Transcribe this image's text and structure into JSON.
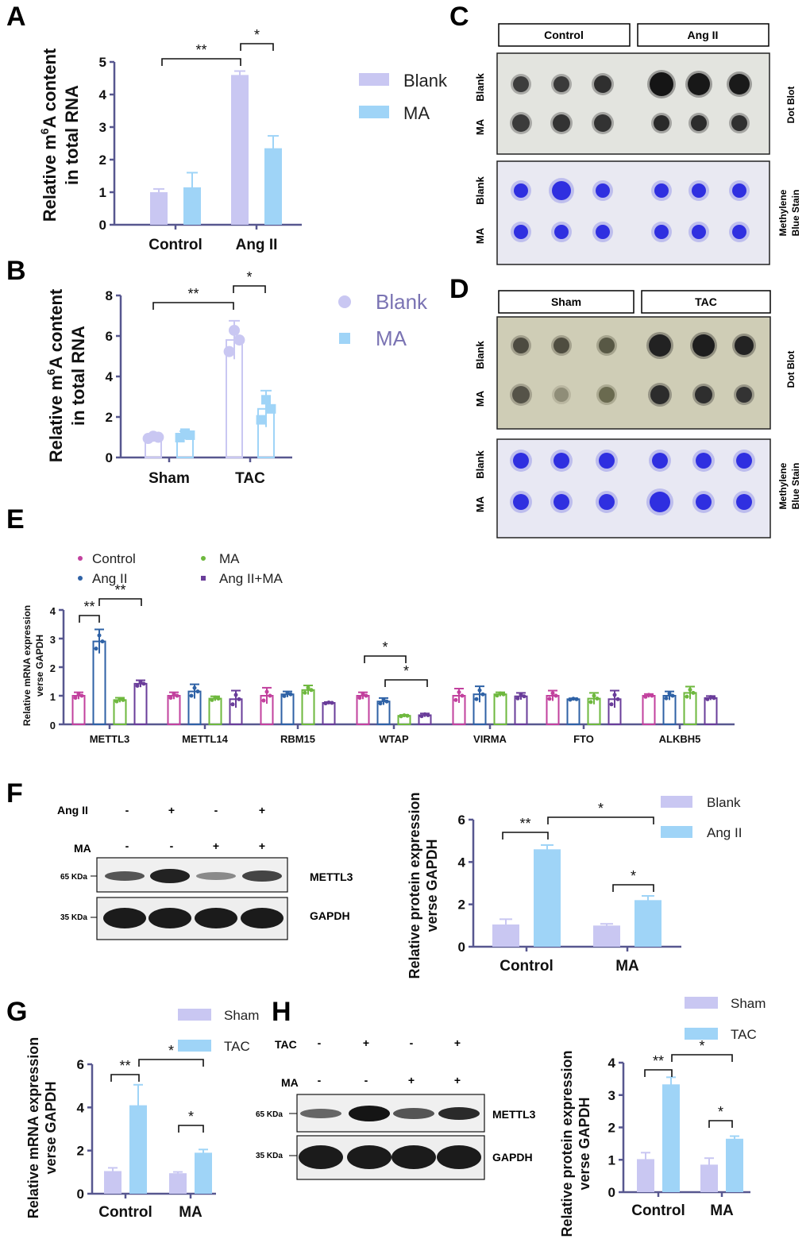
{
  "colors": {
    "blank": "#c9c7f2",
    "treat": "#9fd4f7",
    "axis": "#57578f",
    "ctrl_e": "#c2419e",
    "ang_e": "#2f62a6",
    "ma_e": "#6eb83e",
    "angma_e": "#6a3d9a"
  },
  "panels": {
    "A": "A",
    "B": "B",
    "C": "C",
    "D": "D",
    "E": "E",
    "F": "F",
    "G": "G",
    "H": "H"
  },
  "chart_data": [
    {
      "id": "A",
      "type": "bar",
      "ylabel_line1_pre": "Relative m",
      "ylabel_sup": "6",
      "ylabel_line1_post": "A content",
      "ylabel_line2": "in total RNA",
      "categories": [
        "Control",
        "Ang II"
      ],
      "yticks": [
        "0",
        "1",
        "2",
        "3",
        "4",
        "5"
      ],
      "ylim": [
        0,
        5
      ],
      "series": [
        {
          "name": "Blank",
          "values": [
            1.0,
            4.6
          ],
          "err": [
            0.1,
            0.12
          ]
        },
        {
          "name": "MA",
          "values": [
            1.15,
            2.35
          ],
          "err": [
            0.45,
            0.38
          ]
        }
      ],
      "sig": [
        "**",
        "*"
      ]
    },
    {
      "id": "B",
      "type": "bar",
      "ylabel_line1_pre": "Relative m",
      "ylabel_sup": "6",
      "ylabel_line1_post": "A content",
      "ylabel_line2": "in total RNA",
      "categories": [
        "Sham",
        "TAC"
      ],
      "yticks": [
        "0",
        "2",
        "4",
        "6",
        "8"
      ],
      "ylim": [
        0,
        8
      ],
      "series": [
        {
          "name": "Blank",
          "values": [
            1.0,
            5.8
          ],
          "err": [
            0.1,
            0.95
          ]
        },
        {
          "name": "MA",
          "values": [
            1.1,
            2.4
          ],
          "err": [
            0.2,
            0.9
          ]
        }
      ],
      "sig": [
        "**",
        "*"
      ]
    },
    {
      "id": "E",
      "type": "bar",
      "ylabel_line1": "Relative mRNA expression",
      "ylabel_line2": "verse GAPDH",
      "categories": [
        "METTL3",
        "METTL14",
        "RBM15",
        "WTAP",
        "VIRMA",
        "FTO",
        "ALKBH5"
      ],
      "yticks": [
        "0",
        "1",
        "2",
        "3",
        "4"
      ],
      "ylim": [
        0,
        4
      ],
      "series": [
        {
          "name": "Control",
          "values": [
            1.0,
            1.0,
            1.0,
            1.0,
            1.0,
            1.0,
            1.0
          ],
          "err": [
            0.12,
            0.12,
            0.28,
            0.12,
            0.25,
            0.18,
            0.06
          ]
        },
        {
          "name": "Ang II",
          "values": [
            2.9,
            1.15,
            1.05,
            0.8,
            1.05,
            0.88,
            1.0
          ],
          "err": [
            0.42,
            0.25,
            0.1,
            0.12,
            0.28,
            0.03,
            0.15
          ]
        },
        {
          "name": "MA",
          "values": [
            0.85,
            0.9,
            1.2,
            0.3,
            1.05,
            0.9,
            1.1
          ],
          "err": [
            0.08,
            0.08,
            0.16,
            0.03,
            0.07,
            0.2,
            0.22
          ]
        },
        {
          "name": "Ang II+MA",
          "values": [
            1.42,
            0.88,
            0.75,
            0.32,
            0.98,
            0.88,
            0.92
          ],
          "err": [
            0.12,
            0.3,
            0.03,
            0.06,
            0.12,
            0.3,
            0.07
          ]
        }
      ],
      "sig": [
        "**",
        "**",
        "*",
        "*"
      ]
    },
    {
      "id": "F",
      "type": "bar",
      "ylabel_line1": "Relative protein expression",
      "ylabel_line2": "verse GAPDH",
      "categories": [
        "Control",
        "MA"
      ],
      "yticks": [
        "0",
        "2",
        "4",
        "6"
      ],
      "ylim": [
        0,
        6
      ],
      "series": [
        {
          "name": "Blank",
          "values": [
            1.05,
            1.0
          ],
          "err": [
            0.25,
            0.08
          ]
        },
        {
          "name": "Ang II",
          "values": [
            4.6,
            2.2
          ],
          "err": [
            0.2,
            0.2
          ]
        }
      ],
      "sig": [
        "**",
        "*",
        "*"
      ]
    },
    {
      "id": "G",
      "type": "bar",
      "ylabel_line1": "Relative mRNA expression",
      "ylabel_line2": "verse GAPDH",
      "categories": [
        "Control",
        "MA"
      ],
      "yticks": [
        "0",
        "2",
        "4",
        "6"
      ],
      "ylim": [
        0,
        6
      ],
      "series": [
        {
          "name": "Sham",
          "values": [
            1.05,
            0.95
          ],
          "err": [
            0.15,
            0.06
          ]
        },
        {
          "name": "TAC",
          "values": [
            4.1,
            1.9
          ],
          "err": [
            0.95,
            0.15
          ]
        }
      ],
      "sig": [
        "**",
        "*",
        "*"
      ]
    },
    {
      "id": "H",
      "type": "bar",
      "ylabel_line1": "Relative protein expression",
      "ylabel_line2": "verse GAPDH",
      "categories": [
        "Control",
        "MA"
      ],
      "yticks": [
        "0",
        "1",
        "2",
        "3",
        "4"
      ],
      "ylim": [
        0,
        4
      ],
      "series": [
        {
          "name": "Sham",
          "values": [
            1.02,
            0.85
          ],
          "err": [
            0.2,
            0.2
          ]
        },
        {
          "name": "TAC",
          "values": [
            3.33,
            1.65
          ],
          "err": [
            0.22,
            0.08
          ]
        }
      ],
      "sig": [
        "**",
        "*",
        "*"
      ]
    }
  ],
  "blots": {
    "C": {
      "headers": [
        "Control",
        "Ang II"
      ],
      "rows": [
        "Blank",
        "MA",
        "Blank",
        "MA"
      ],
      "side_top": "Dot Blot",
      "side_bottom_1": "Methylene",
      "side_bottom_2": "Blue Stain"
    },
    "D": {
      "headers": [
        "Sham",
        "TAC"
      ],
      "rows": [
        "Blank",
        "MA",
        "Blank",
        "MA"
      ],
      "side_top": "Dot Blot",
      "side_bottom_1": "Methylene",
      "side_bottom_2": "Blue Stain"
    },
    "F": {
      "row1_label": "Ang II",
      "row1": [
        "-",
        "+",
        "-",
        "+"
      ],
      "row2_label": "MA",
      "row2": [
        "-",
        "-",
        "+",
        "+"
      ],
      "mw1": "65 KDa",
      "mw2": "35 KDa",
      "band1": "METTL3",
      "band2": "GAPDH"
    },
    "H": {
      "row1_label": "TAC",
      "row1": [
        "-",
        "+",
        "-",
        "+"
      ],
      "row2_label": "MA",
      "row2": [
        "-",
        "-",
        "+",
        "+"
      ],
      "mw1": "65 KDa",
      "mw2": "35 KDa",
      "band1": "METTL3",
      "band2": "GAPDH"
    }
  }
}
